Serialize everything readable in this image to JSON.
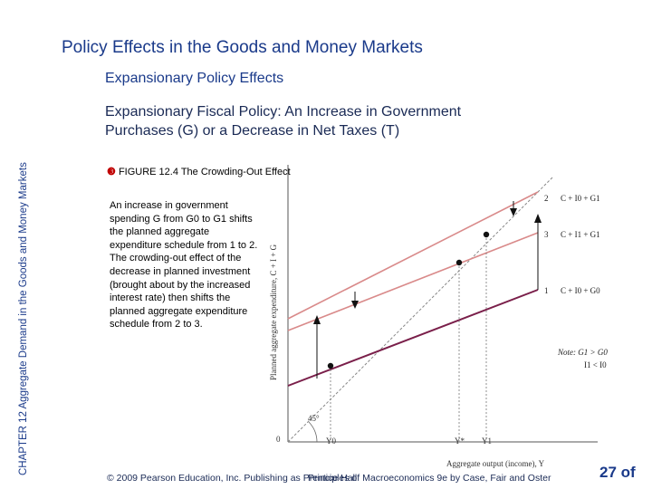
{
  "slide": {
    "title": "Policy Effects in the Goods and Money Markets",
    "subtitle": "Expansionary Policy Effects",
    "side_label": "CHAPTER 12 Aggregate Demand in the Goods and Money Markets",
    "heading_line1": "Expansionary Fiscal Policy: An Increase in Government",
    "heading_line2": "Purchases (G) or a Decrease in Net Taxes (T)",
    "figure_label": "FIGURE 12.4 The Crowding-Out Effect",
    "description_1": "An increase in government spending G from G0 to G1 shifts the planned aggregate expenditure schedule from 1 to 2.",
    "description_2": "The crowding-out effect of the decrease in planned investment (brought about by the increased interest rate) then shifts the planned aggregate expenditure schedule from 2 to 3.",
    "footer_copyright": "© 2009 Pearson Education, Inc. Publishing as Prentice Hall",
    "footer_book": "Principles of Macroeconomics 9e by Case, Fair and Oster",
    "page_number": "27 of"
  },
  "diagram": {
    "y_axis_label": "Planned aggregate expenditure, C + I + G",
    "x_axis_label": "Aggregate output (income), Y",
    "origin_label": "0",
    "angle_label": "45°",
    "x_ticks": [
      "Y0",
      "Y*",
      "Y1"
    ],
    "curves": [
      {
        "number": "2",
        "label": "C + I0 + G1"
      },
      {
        "number": "3",
        "label": "C + I1 + G1"
      },
      {
        "number": "1",
        "label": "C + I0 + G0"
      }
    ],
    "note_line1": "Note: G1 > G0",
    "note_line2": "I1 < I0",
    "colors": {
      "curve_1": "#7a1f4a",
      "curve_2": "#d98a8a",
      "curve_3": "#d98a8a",
      "guide_45": "#888888"
    }
  }
}
